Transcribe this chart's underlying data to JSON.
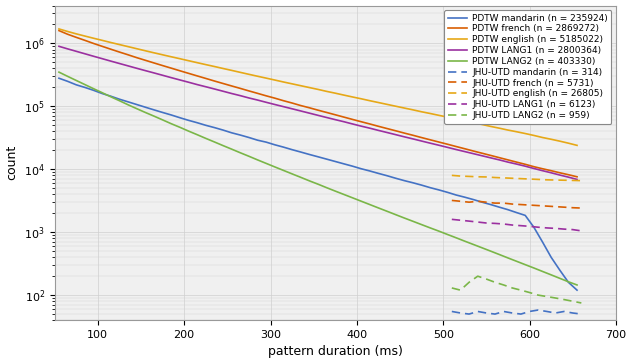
{
  "title": "",
  "xlabel": "pattern duration (ms)",
  "ylabel": "count",
  "xlim": [
    50,
    700
  ],
  "ylim_log": [
    40,
    4000000
  ],
  "legend_entries": [
    "PDTW mandarin (n = 235924)",
    "PDTW french (n = 2869272)",
    "PDTW english (n = 5185022)",
    "PDTW LANG1 (n = 2800364)",
    "PDTW LANG2 (n = 403330)",
    "JHU-UTD mandarin (n = 314)",
    "JHU-UTD french (n = 5731)",
    "JHU-UTD english (n = 26805)",
    "JHU-UTD LANG1 (n = 6123)",
    "JHU-UTD LANG2 (n = 959)"
  ],
  "colors": {
    "mandarin": "#4472C4",
    "french": "#D95F02",
    "english": "#E6A817",
    "lang1": "#9B30A0",
    "lang2": "#7AB648"
  },
  "solid_x": [
    55,
    65,
    75,
    85,
    95,
    105,
    115,
    125,
    135,
    145,
    155,
    165,
    175,
    185,
    195,
    205,
    215,
    225,
    235,
    245,
    255,
    265,
    275,
    285,
    295,
    305,
    315,
    325,
    335,
    345,
    355,
    365,
    375,
    385,
    395,
    405,
    415,
    425,
    435,
    445,
    455,
    465,
    475,
    485,
    495,
    505,
    515,
    525,
    535,
    545,
    555,
    565,
    575,
    585,
    595,
    605,
    615,
    625,
    635,
    645,
    655
  ],
  "pdtw_mandarin": [
    280000,
    250000,
    220000,
    200000,
    180000,
    160000,
    145000,
    130000,
    118000,
    107000,
    97000,
    88000,
    80000,
    73000,
    66000,
    60000,
    55000,
    50000,
    46000,
    42000,
    38000,
    35000,
    32000,
    29000,
    27000,
    24500,
    22500,
    20500,
    18800,
    17200,
    15800,
    14500,
    13300,
    12200,
    11200,
    10200,
    9400,
    8600,
    7900,
    7200,
    6600,
    6100,
    5600,
    5100,
    4700,
    4300,
    3900,
    3600,
    3300,
    3000,
    2750,
    2500,
    2280,
    2050,
    1850,
    1200,
    700,
    400,
    250,
    160,
    120
  ],
  "pdtw_french": [
    1600000,
    1400000,
    1250000,
    1120000,
    1000000,
    900000,
    810000,
    730000,
    660000,
    595000,
    540000,
    490000,
    445000,
    405000,
    368000,
    335000,
    305000,
    278000,
    253000,
    231000,
    211000,
    193000,
    176000,
    161000,
    147000,
    135000,
    123000,
    113000,
    103000,
    95000,
    87000,
    80000,
    73500,
    67500,
    62000,
    57000,
    52500,
    48200,
    44400,
    40900,
    37600,
    34700,
    31900,
    29400,
    27100,
    25000,
    23000,
    21200,
    19500,
    18000,
    16600,
    15300,
    14100,
    13000,
    12000,
    11000,
    10200,
    9500,
    8800,
    8200,
    7600
  ],
  "pdtw_english": [
    1700000,
    1550000,
    1420000,
    1310000,
    1210000,
    1120000,
    1035000,
    960000,
    890000,
    825000,
    765000,
    710000,
    660000,
    614000,
    572000,
    532000,
    495000,
    461000,
    430000,
    400000,
    373000,
    347000,
    323000,
    301000,
    281000,
    262000,
    244000,
    228000,
    213000,
    199000,
    186000,
    173000,
    162000,
    151000,
    141000,
    132000,
    123000,
    115000,
    107500,
    100500,
    94000,
    88000,
    82000,
    77000,
    72000,
    67500,
    63000,
    59000,
    55000,
    51500,
    48000,
    45000,
    42000,
    39500,
    37000,
    34500,
    32000,
    30000,
    28000,
    26000,
    24000
  ],
  "pdtw_lang1": [
    900000,
    820000,
    750000,
    685000,
    626000,
    573000,
    524000,
    480000,
    440000,
    403000,
    370000,
    340000,
    312000,
    286000,
    263000,
    242000,
    222000,
    205000,
    189000,
    174000,
    160000,
    148000,
    136000,
    126000,
    116000,
    107000,
    99000,
    91500,
    84500,
    78000,
    72000,
    66500,
    61500,
    57000,
    52500,
    48500,
    45000,
    41500,
    38400,
    35500,
    32800,
    30400,
    28100,
    26000,
    24100,
    22300,
    20600,
    19100,
    17700,
    16400,
    15200,
    14100,
    13000,
    12100,
    11200,
    10300,
    9500,
    8800,
    8100,
    7500,
    6900
  ],
  "pdtw_lang2": [
    350000,
    300000,
    258000,
    222000,
    191000,
    165000,
    142000,
    123000,
    106000,
    92000,
    80000,
    70000,
    61000,
    53000,
    46500,
    40500,
    35500,
    31000,
    27200,
    23800,
    20900,
    18300,
    16100,
    14100,
    12400,
    10900,
    9600,
    8450,
    7450,
    6550,
    5800,
    5100,
    4500,
    3980,
    3520,
    3110,
    2750,
    2430,
    2150,
    1900,
    1680,
    1490,
    1320,
    1170,
    1040,
    920,
    815,
    720,
    638,
    565,
    500,
    442,
    390,
    345,
    305,
    270,
    238,
    210,
    185,
    163,
    145
  ],
  "jhu_x": [
    510,
    520,
    530,
    540,
    550,
    560,
    570,
    580,
    590,
    600,
    610,
    620,
    630,
    640,
    650,
    660
  ],
  "jhu_mandarin": [
    55,
    52,
    50,
    55,
    52,
    50,
    55,
    52,
    50,
    55,
    58,
    55,
    52,
    55,
    52,
    50
  ],
  "jhu_french": [
    3200,
    3100,
    3000,
    3100,
    3000,
    2900,
    2900,
    2800,
    2750,
    2700,
    2650,
    2600,
    2550,
    2500,
    2450,
    2420
  ],
  "jhu_english": [
    8000,
    7800,
    7700,
    7600,
    7550,
    7400,
    7300,
    7200,
    7100,
    7000,
    6900,
    6800,
    6750,
    6700,
    6650,
    6600
  ],
  "jhu_lang1": [
    1600,
    1550,
    1500,
    1450,
    1400,
    1380,
    1350,
    1300,
    1270,
    1240,
    1200,
    1170,
    1150,
    1120,
    1100,
    1050
  ],
  "jhu_lang2": [
    130,
    120,
    160,
    200,
    180,
    160,
    145,
    130,
    120,
    110,
    100,
    95,
    90,
    85,
    80,
    75
  ],
  "background_color": "#f0f0f0",
  "grid_color": "#d0d0d0"
}
